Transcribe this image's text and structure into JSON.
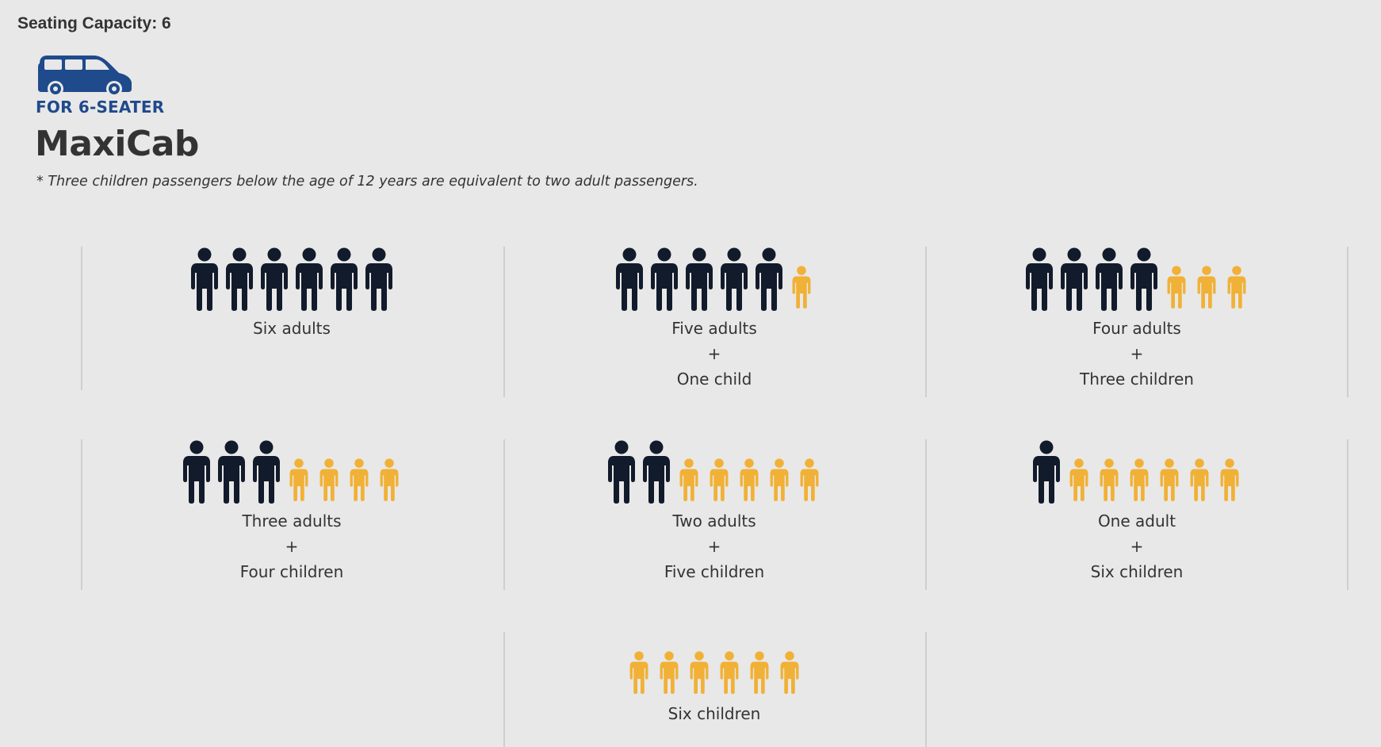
{
  "header": {
    "capacity": "Seating Capacity: 6",
    "seater_label": "FOR 6-SEATER",
    "brand": "MaxiCab",
    "note": "* Three children passengers below the age of 12 years are equivalent to two adult passengers."
  },
  "colors": {
    "adult": "#121b2b",
    "child": "#f1b136",
    "van": "#1f4a8c",
    "divider": "#cfcfcf"
  },
  "icons": {
    "van": "minivan-icon",
    "adult": "adult-person-icon",
    "child": "child-person-icon"
  },
  "options": [
    {
      "adults": 6,
      "children": 0,
      "line1": "Six adults",
      "plus": "",
      "line2": ""
    },
    {
      "adults": 5,
      "children": 1,
      "line1": "Five adults",
      "plus": "+",
      "line2": "One child"
    },
    {
      "adults": 4,
      "children": 3,
      "line1": "Four adults",
      "plus": "+",
      "line2": "Three children"
    },
    {
      "adults": 3,
      "children": 4,
      "line1": "Three adults",
      "plus": "+",
      "line2": "Four children"
    },
    {
      "adults": 2,
      "children": 5,
      "line1": "Two adults",
      "plus": "+",
      "line2": "Five children"
    },
    {
      "adults": 1,
      "children": 6,
      "line1": "One adult",
      "plus": "+",
      "line2": "Six children"
    },
    {
      "adults": 0,
      "children": 6,
      "line1": "Six children",
      "plus": "",
      "line2": ""
    }
  ]
}
